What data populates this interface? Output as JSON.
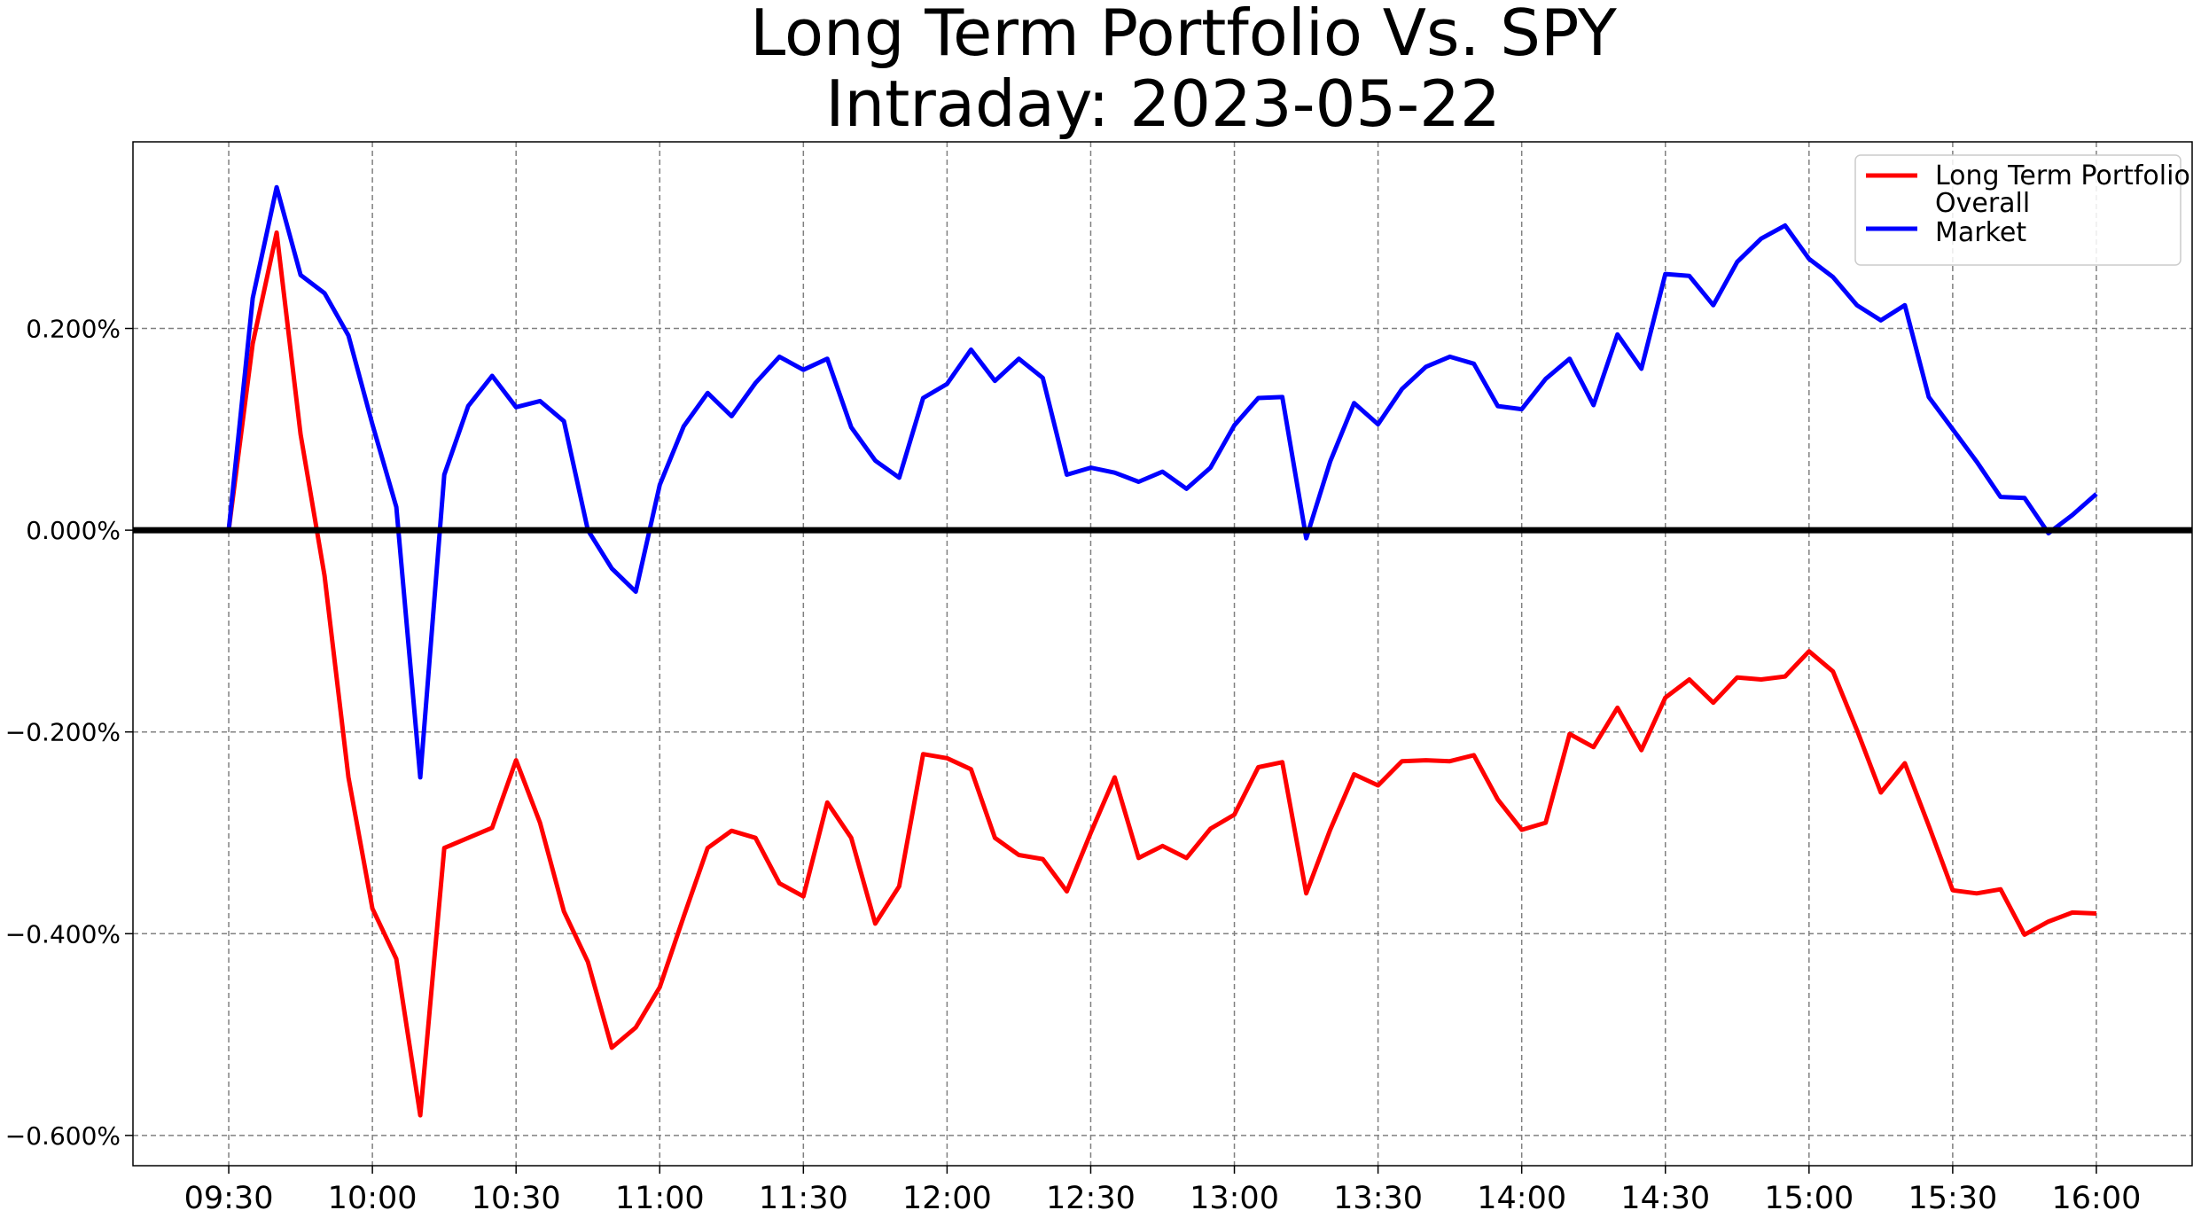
{
  "chart_data": {
    "type": "line",
    "title": "Long Term Portfolio Vs. SPY",
    "subtitle": "Intraday: 2023-05-22",
    "xlabel": "",
    "ylabel": "",
    "x_tick_labels": [
      "09:30",
      "10:00",
      "10:30",
      "11:00",
      "11:30",
      "12:00",
      "12:30",
      "13:00",
      "13:30",
      "14:00",
      "14:30",
      "15:00",
      "15:30",
      "16:00"
    ],
    "y_ticks": [
      0.2,
      0.0,
      -0.2,
      -0.4,
      -0.6
    ],
    "y_tick_labels": [
      "0.200%",
      "0.000%",
      "−0.200%",
      "−0.400%",
      "−0.600%"
    ],
    "ylim": [
      -0.63,
      0.385
    ],
    "x_start": "09:30",
    "x_end": "16:00",
    "xlim": [
      "09:10",
      "16:20"
    ],
    "grid": true,
    "zero_line": true,
    "legend_position": "top-right",
    "series": [
      {
        "name": "Long Term Portfolio",
        "color": "#ff0000",
        "values": [
          0.0,
          0.185,
          0.295,
          0.095,
          -0.045,
          -0.245,
          -0.375,
          -0.425,
          -0.58,
          -0.315,
          -0.305,
          -0.295,
          -0.228,
          -0.29,
          -0.378,
          -0.428,
          -0.513,
          -0.493,
          -0.453,
          -0.383,
          -0.315,
          -0.298,
          -0.305,
          -0.35,
          -0.363,
          -0.27,
          -0.305,
          -0.39,
          -0.353,
          -0.222,
          -0.226,
          -0.237,
          -0.305,
          -0.322,
          -0.326,
          -0.358,
          -0.3,
          -0.245,
          -0.325,
          -0.313,
          -0.325,
          -0.296,
          -0.282,
          -0.235,
          -0.23,
          -0.36,
          -0.297,
          -0.242,
          -0.253,
          -0.229,
          -0.228,
          -0.229,
          -0.223,
          -0.267,
          -0.297,
          -0.29,
          -0.202,
          -0.215,
          -0.176,
          -0.218,
          -0.166,
          -0.148,
          -0.171,
          -0.146,
          -0.148,
          -0.145,
          -0.12,
          -0.14,
          -0.198,
          -0.26,
          -0.231,
          -0.293,
          -0.357,
          -0.36,
          -0.356,
          -0.401,
          -0.388,
          -0.379,
          -0.38
        ]
      },
      {
        "name": "Overall\nMarket",
        "color": "#0000ff",
        "values": [
          0.0,
          0.23,
          0.34,
          0.253,
          0.235,
          0.193,
          0.105,
          0.023,
          -0.245,
          0.055,
          0.123,
          0.153,
          0.122,
          0.128,
          0.108,
          0.0,
          -0.038,
          -0.061,
          0.045,
          0.103,
          0.136,
          0.113,
          0.146,
          0.172,
          0.159,
          0.17,
          0.102,
          0.069,
          0.052,
          0.131,
          0.145,
          0.179,
          0.148,
          0.17,
          0.151,
          0.055,
          0.062,
          0.057,
          0.048,
          0.058,
          0.041,
          0.062,
          0.104,
          0.131,
          0.132,
          -0.008,
          0.068,
          0.126,
          0.105,
          0.14,
          0.162,
          0.172,
          0.165,
          0.123,
          0.12,
          0.15,
          0.17,
          0.124,
          0.194,
          0.16,
          0.254,
          0.252,
          0.223,
          0.266,
          0.289,
          0.302,
          0.269,
          0.251,
          0.223,
          0.208,
          0.223,
          0.132,
          0.1,
          0.068,
          0.033,
          0.032,
          -0.003,
          0.015,
          0.036
        ]
      }
    ]
  }
}
